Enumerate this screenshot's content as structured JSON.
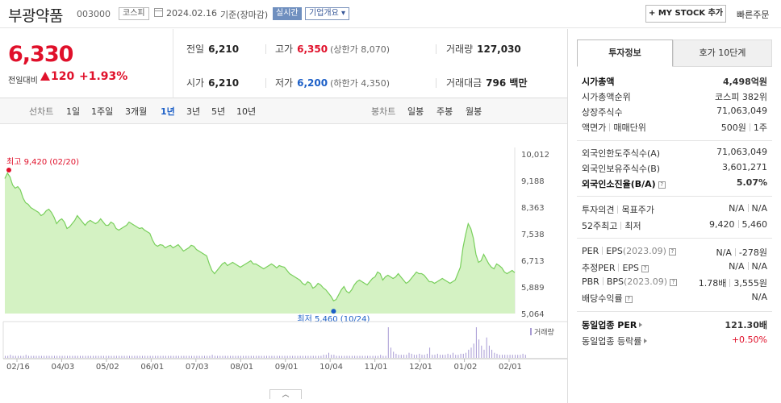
{
  "header": {
    "name": "부광약품",
    "code": "003000",
    "market": "코스피",
    "date": "2024.02.16",
    "basis": "기준(장마감)",
    "realtime": "실시간",
    "overview": "기업개요",
    "mystock": "MY STOCK 추가",
    "quick_order": "빠른주문"
  },
  "price": {
    "current": "6,330",
    "change_label": "전일대비",
    "change": "120",
    "change_pct": "+1.93%",
    "direction": "up"
  },
  "quote": {
    "prev_label": "전일",
    "prev": "6,210",
    "high_label": "고가",
    "high": "6,350",
    "upper_limit": "(상한가 8,070)",
    "volume_label": "거래량",
    "volume": "127,030",
    "open_label": "시가",
    "open": "6,210",
    "low_label": "저가",
    "low": "6,200",
    "lower_limit": "(하한가 4,350)",
    "amount_label": "거래대금",
    "amount": "796 백만"
  },
  "periods": {
    "line_label": "선차트",
    "items": [
      "1일",
      "1주일",
      "3개월",
      "1년",
      "3년",
      "5년",
      "10년"
    ],
    "active": "1년",
    "candle_label": "봉차트",
    "candle_items": [
      "일봉",
      "주봉",
      "월봉"
    ]
  },
  "chart_data": {
    "type": "area",
    "y_ticks": [
      "10,012",
      "9,188",
      "8,363",
      "7,538",
      "6,713",
      "5,889",
      "5,064"
    ],
    "ylim": [
      5064,
      10012
    ],
    "x_ticks": [
      "02/16",
      "04/03",
      "05/02",
      "06/01",
      "07/03",
      "08/01",
      "09/01",
      "10/04",
      "11/01",
      "12/01",
      "01/02",
      "02/01"
    ],
    "high_annotation": "최고 9,420 (02/20)",
    "low_annotation": "최저 5,460 (10/24)",
    "volume_label": "거래량",
    "series": [
      {
        "name": "종가",
        "values": [
          9250,
          9420,
          9300,
          9050,
          8950,
          9000,
          8900,
          8650,
          8500,
          8450,
          8350,
          8300,
          8250,
          8200,
          8100,
          8150,
          8250,
          8300,
          8200,
          8050,
          7850,
          7950,
          8000,
          7900,
          7700,
          7750,
          7850,
          7950,
          8100,
          8000,
          7900,
          7800,
          7900,
          7950,
          7900,
          7850,
          7900,
          8000,
          7900,
          7800,
          7800,
          7900,
          7850,
          7700,
          7650,
          7700,
          7750,
          7800,
          7900,
          7850,
          7800,
          7750,
          7700,
          7720,
          7650,
          7600,
          7550,
          7350,
          7200,
          7150,
          7200,
          7180,
          7100,
          7150,
          7180,
          7100,
          7150,
          7200,
          7100,
          7000,
          7050,
          7100,
          7180,
          7150,
          7050,
          7000,
          6950,
          6900,
          6850,
          6600,
          6400,
          6300,
          6400,
          6500,
          6600,
          6650,
          6550,
          6600,
          6650,
          6600,
          6550,
          6500,
          6550,
          6600,
          6650,
          6700,
          6600,
          6600,
          6550,
          6500,
          6450,
          6500,
          6550,
          6600,
          6550,
          6480,
          6550,
          6520,
          6500,
          6400,
          6300,
          6250,
          6200,
          6150,
          6100,
          6000,
          5950,
          6050,
          6000,
          5850,
          5900,
          6000,
          5950,
          5860,
          5800,
          5700,
          5600,
          5460,
          5500,
          5650,
          5800,
          5900,
          5750,
          5700,
          5800,
          5950,
          6050,
          6100,
          6050,
          6000,
          5950,
          6050,
          6150,
          6200,
          6350,
          6300,
          6100,
          6200,
          6250,
          6200,
          6150,
          6200,
          6300,
          6200,
          6100,
          6000,
          6050,
          6150,
          6250,
          6350,
          6300,
          6300,
          6250,
          6150,
          6050,
          6050,
          6000,
          6050,
          6100,
          6150,
          6100,
          6050,
          6000,
          6050,
          6100,
          6300,
          6500,
          7100,
          7500,
          7850,
          7700,
          7400,
          6900,
          6650,
          6700,
          6900,
          6750,
          6600,
          6500,
          6450,
          6600,
          6550,
          6480,
          6350,
          6300,
          6350,
          6400,
          6330
        ]
      }
    ],
    "volume_values": [
      2,
      2,
      3,
      2,
      2,
      2,
      2,
      2,
      3,
      2,
      2,
      2,
      2,
      2,
      2,
      2,
      2,
      2,
      2,
      2,
      2,
      2,
      2,
      2,
      2,
      2,
      2,
      2,
      2,
      2,
      2,
      2,
      2,
      2,
      2,
      2,
      2,
      2,
      2,
      2,
      2,
      2,
      2,
      2,
      2,
      2,
      2,
      2,
      2,
      2,
      2,
      2,
      2,
      2,
      2,
      2,
      2,
      2,
      2,
      2,
      2,
      2,
      2,
      2,
      2,
      2,
      2,
      2,
      2,
      2,
      2,
      2,
      2,
      2,
      2,
      2,
      2,
      2,
      2,
      2,
      3,
      2,
      2,
      2,
      2,
      2,
      2,
      2,
      2,
      2,
      2,
      2,
      2,
      2,
      2,
      2,
      2,
      2,
      2,
      2,
      2,
      2,
      2,
      2,
      2,
      2,
      2,
      2,
      2,
      2,
      2,
      2,
      2,
      2,
      2,
      2,
      2,
      2,
      2,
      2,
      2,
      2,
      2,
      3,
      3,
      5,
      3,
      3,
      2,
      2,
      2,
      2,
      2,
      2,
      2,
      2,
      2,
      2,
      2,
      2,
      2,
      2,
      2,
      2,
      2,
      3,
      2,
      2,
      30,
      10,
      6,
      4,
      3,
      3,
      3,
      3,
      5,
      4,
      3,
      3,
      4,
      3,
      3,
      4,
      10,
      3,
      3,
      4,
      3,
      3,
      3,
      4,
      3,
      5,
      3,
      3,
      4,
      4,
      5,
      8,
      10,
      14,
      30,
      18,
      12,
      8,
      20,
      12,
      8,
      5,
      4,
      3,
      3,
      3,
      3,
      3,
      3,
      3,
      3,
      3,
      4,
      3
    ],
    "line_color": "#79cf5c",
    "fill_color": "#cdf0b9",
    "high_color": "#e0102a",
    "low_color": "#1c5fc7",
    "grid": false
  },
  "panel": {
    "tab_active": "투자정보",
    "tab_other": "호가 10단계",
    "group1": [
      {
        "label": "시가총액",
        "value": "4,498억원",
        "bold": true
      },
      {
        "label": "시가총액순위",
        "value": "코스피 382위"
      },
      {
        "label": "상장주식수",
        "value": "71,063,049"
      },
      {
        "label": "액면가",
        "label2": "매매단위",
        "value": "500원",
        "value2": "1주"
      }
    ],
    "group2": [
      {
        "label": "외국인한도주식수(A)",
        "value": "71,063,049"
      },
      {
        "label": "외국인보유주식수(B)",
        "value": "3,601,271"
      },
      {
        "label": "외국인소진율(B/A)",
        "value": "5.07%",
        "bold": true
      }
    ],
    "group3": [
      {
        "label": "투자의견",
        "label2": "목표주가",
        "value": "N/A",
        "value2": "N/A"
      },
      {
        "label": "52주최고",
        "label2": "최저",
        "value": "9,420",
        "value2": "5,460"
      }
    ],
    "group4": [
      {
        "label": "PER",
        "label2": "EPS",
        "sub": "(2023.09)",
        "value": "N/A",
        "value2": "-278원"
      },
      {
        "label": "추정PER",
        "label2": "EPS",
        "value": "N/A",
        "value2": "N/A"
      },
      {
        "label": "PBR",
        "label2": "BPS",
        "sub": "(2023.09)",
        "value": "1.78배",
        "value2": "3,555원"
      },
      {
        "label": "배당수익률",
        "value": "N/A"
      }
    ],
    "group5": [
      {
        "label": "동일업종 PER",
        "value": "121.30배",
        "bold": true
      },
      {
        "label": "동일업종 등락률",
        "value": "+0.50%",
        "red": true
      }
    ]
  }
}
